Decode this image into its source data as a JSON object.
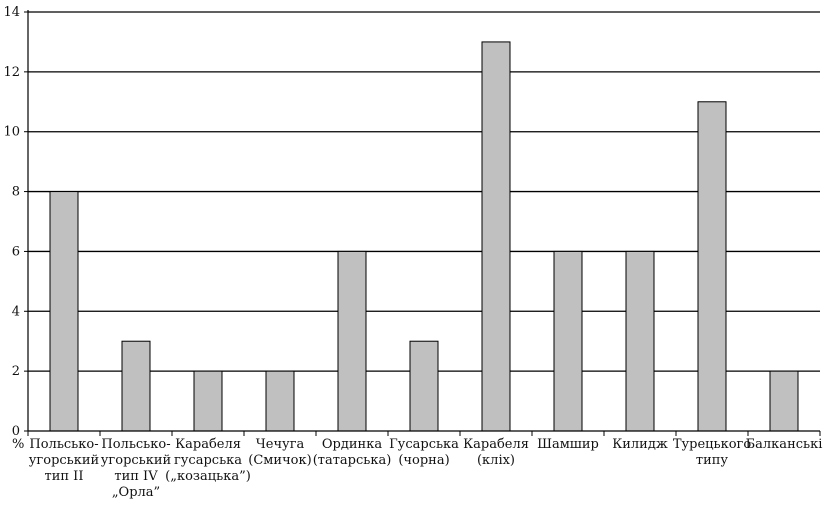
{
  "chart_data": {
    "type": "bar",
    "ylabel": "%",
    "ylim": [
      0,
      14
    ],
    "yticks": [
      "0",
      "2",
      "4",
      "6",
      "8",
      "10",
      "12",
      "14"
    ],
    "grid": true,
    "legend": "none",
    "bar_color": "#c0c0c0",
    "categories": [
      [
        "Польсько-",
        "угорський",
        "тип II"
      ],
      [
        "Польсько-",
        "угорський",
        "тип IV",
        "„Орла”"
      ],
      [
        "Карабеля",
        "гусарська",
        "(„козацька”)"
      ],
      [
        "Чечуга",
        "(Смичок)"
      ],
      [
        "Ординка",
        "(татарська)"
      ],
      [
        "Гусарська",
        "(чорна)"
      ],
      [
        "Карабеля",
        "(кліх)"
      ],
      [
        "Шамшир"
      ],
      [
        "Килидж"
      ],
      [
        "Турецького",
        "типу"
      ],
      [
        "Балканські"
      ]
    ],
    "values": [
      8,
      3,
      2,
      2,
      6,
      3,
      13,
      6,
      6,
      11,
      2
    ]
  }
}
